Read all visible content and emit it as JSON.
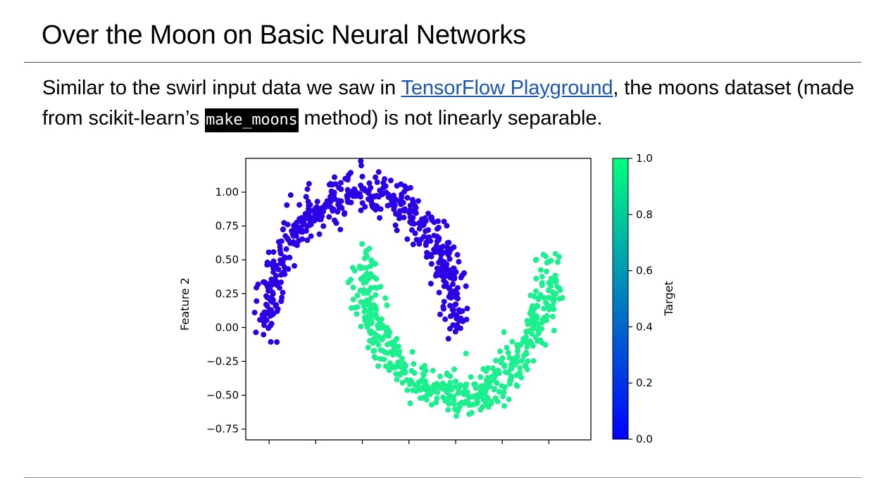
{
  "slide": {
    "title": "Over the Moon on Basic Neural Networks",
    "text_before_link": "Similar to the swirl input data we saw in ",
    "link_text": "TensorFlow Playground",
    "text_after_link": ", the moons dataset (made from scikit-learn’s ",
    "code_text": "make_moons",
    "text_after_code": " method) is not linearly separable."
  },
  "chart_data": {
    "type": "scatter",
    "title": "",
    "xlabel": "",
    "ylabel": "Feature 2",
    "xlim": [
      -1.25,
      2.45
    ],
    "ylim": [
      -0.83,
      1.25
    ],
    "x_ticks": [
      -1,
      -0.5,
      0,
      0.5,
      1,
      1.5,
      2
    ],
    "x_tick_labels_visible": false,
    "y_ticks": [
      1.0,
      0.75,
      0.5,
      0.25,
      0.0,
      -0.25,
      -0.5,
      -0.75
    ],
    "y_tick_labels": [
      "1.00",
      "0.75",
      "0.50",
      "0.25",
      "0.00",
      "−0.25",
      "−0.50",
      "−0.75"
    ],
    "n_points_per_class": 500,
    "noise": 0.08,
    "series": [
      {
        "target": 0,
        "color": "#2b00e6",
        "shape": "upper moon",
        "center": [
          0,
          0
        ],
        "radius": 1
      },
      {
        "target": 1,
        "color": "#1cf08e",
        "shape": "lower moon",
        "center": [
          1,
          0.5
        ],
        "radius": 1
      }
    ],
    "colorbar": {
      "label": "Target",
      "range": [
        0.0,
        1.0
      ],
      "ticks": [
        1.0,
        0.8,
        0.6,
        0.4,
        0.2,
        0.0
      ],
      "tick_labels": [
        "1.0",
        "0.8",
        "0.6",
        "0.4",
        "0.2",
        "0.0"
      ],
      "color_low": "#0000ff",
      "color_high": "#00ff80"
    },
    "grid": false,
    "legend": "none"
  }
}
